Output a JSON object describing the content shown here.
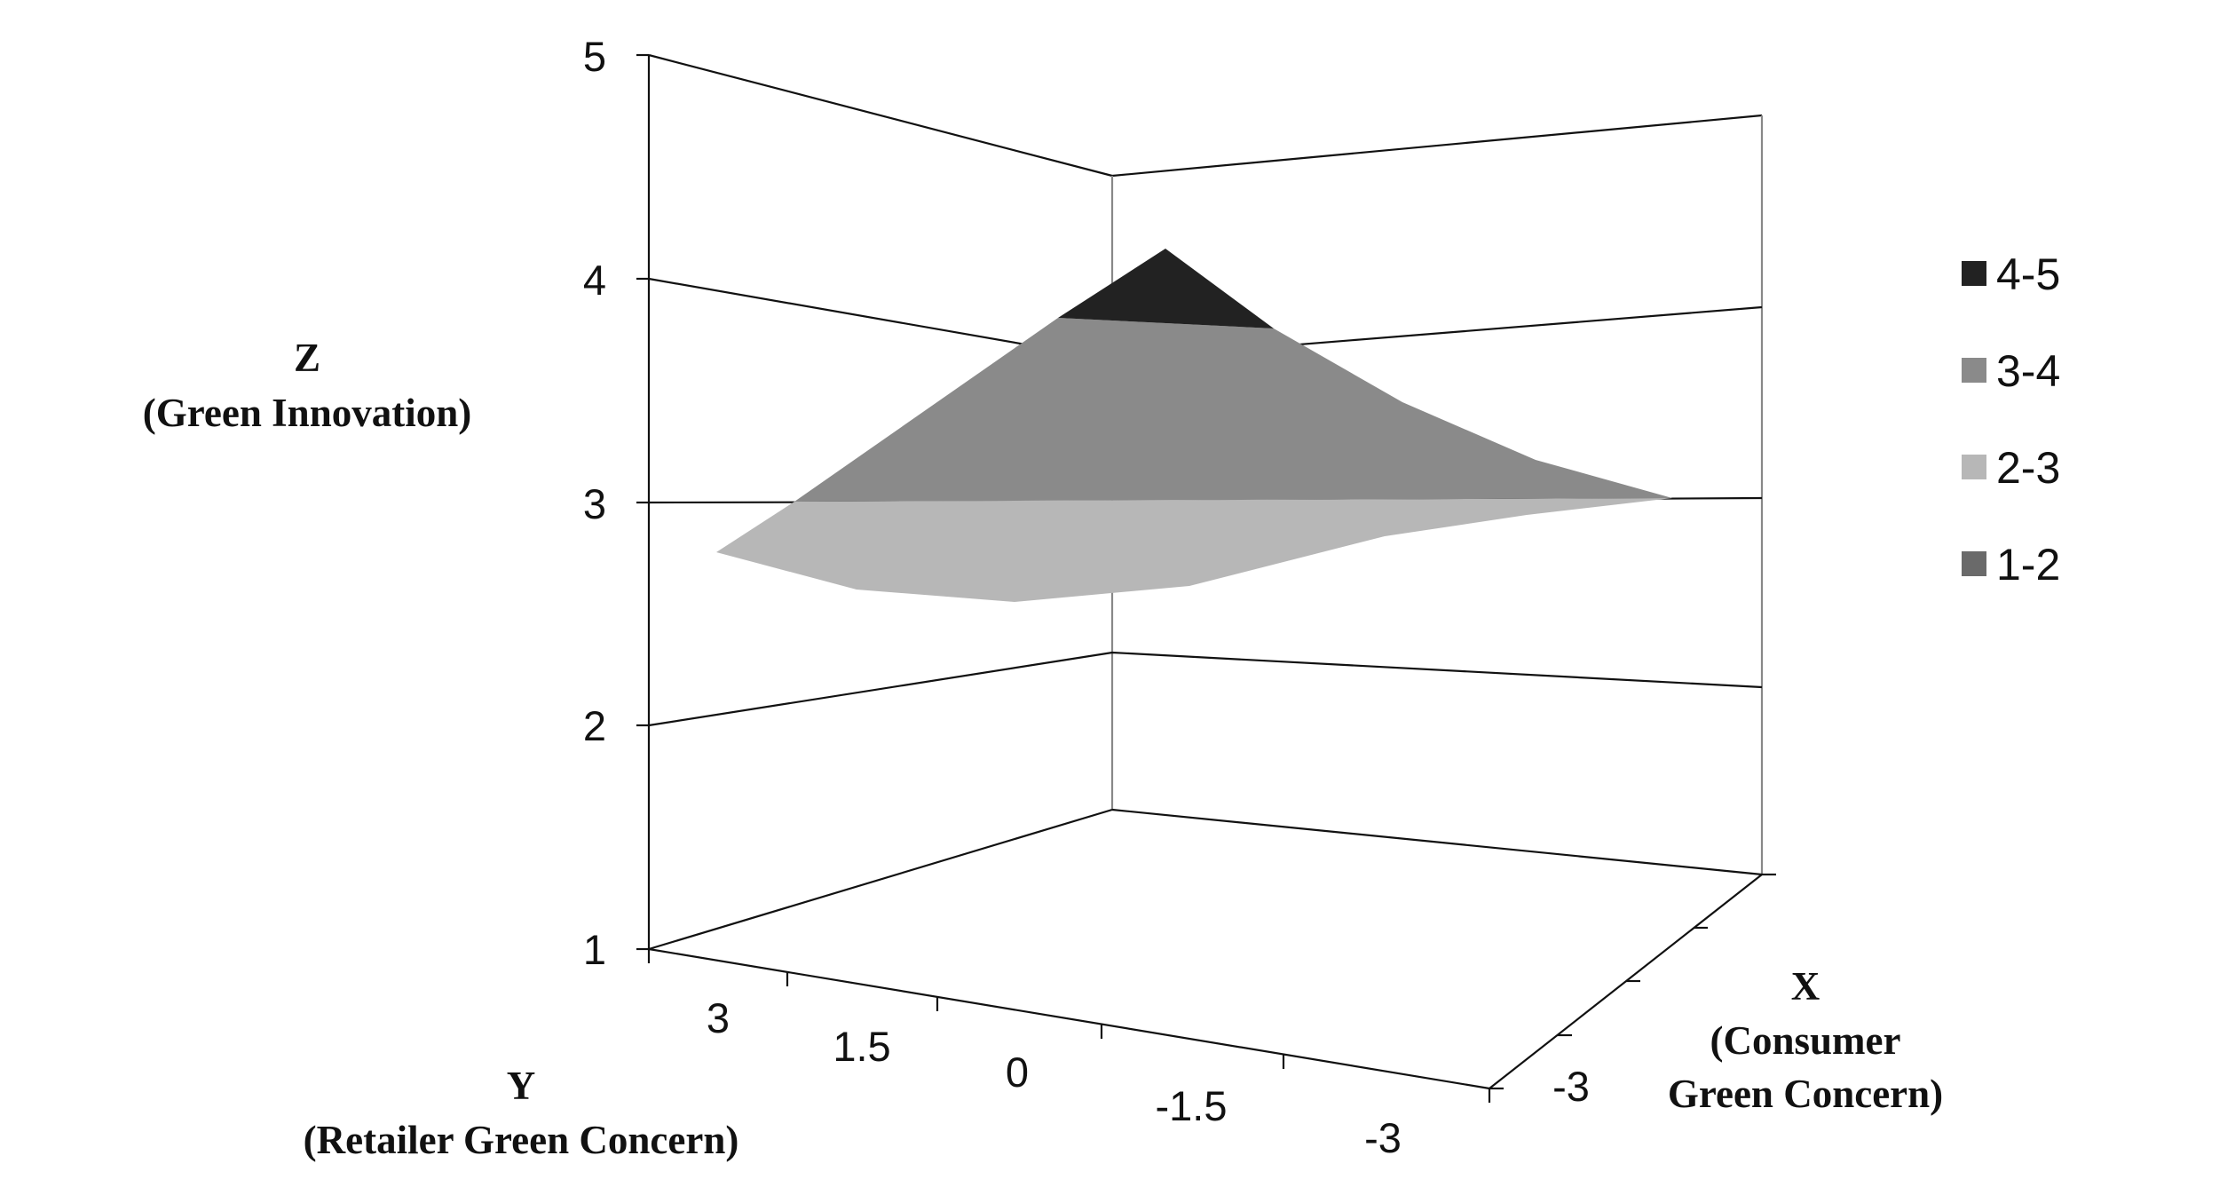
{
  "chart_data": {
    "type": "surface",
    "z_axis": {
      "title": "Z",
      "subtitle": "(Green Innovation)",
      "ticks": [
        "5",
        "4",
        "3",
        "2",
        "1"
      ],
      "range": [
        1,
        5
      ]
    },
    "y_axis": {
      "title": "Y",
      "subtitle": "(Retailer Green Concern)",
      "ticks": [
        "3",
        "1.5",
        "0",
        "-1.5",
        "-3"
      ]
    },
    "x_axis": {
      "title": "X",
      "subtitle_line1": "(Consumer",
      "subtitle_line2": "Green Concern)",
      "ticks": [
        "-3"
      ]
    },
    "legend": {
      "position": "right",
      "entries": [
        {
          "label": "4-5",
          "color": "#222222"
        },
        {
          "label": "3-4",
          "color": "#8a8a8a"
        },
        {
          "label": "2-3",
          "color": "#b7b7b7"
        },
        {
          "label": "1-2",
          "color": "#6a6a6a"
        }
      ]
    },
    "surface": {
      "y_values": [
        3,
        1.5,
        0,
        -1.5,
        -3
      ],
      "z_values_front": [
        2.8,
        2.6,
        2.55,
        2.6,
        2.85
      ],
      "z_peak": 4.1,
      "bands": [
        "4-5",
        "3-4",
        "2-3"
      ]
    },
    "grid": true
  }
}
